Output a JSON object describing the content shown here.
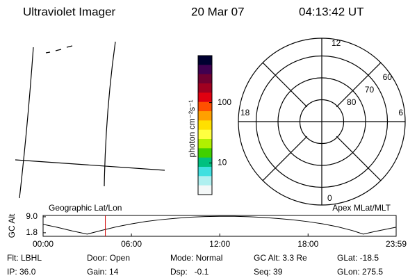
{
  "header": {
    "title": "Ultraviolet Imager",
    "date": "20 Mar 07",
    "time": "04:13:42 UT"
  },
  "colorbar": {
    "label": "photon cm⁻²s⁻¹",
    "lim": [
      3,
      600
    ],
    "log": true,
    "ticks": [
      100,
      10
    ],
    "colors": [
      "#000030",
      "#400050",
      "#700030",
      "#a00020",
      "#e00010",
      "#ff5000",
      "#ffa000",
      "#ffe000",
      "#ffff40",
      "#b0f000",
      "#40d000",
      "#00c080",
      "#40e0e0",
      "#b0f0f0",
      "#f4f8f8"
    ]
  },
  "polar": {
    "mlt_labels": [
      "12",
      "6",
      "0",
      "18"
    ],
    "rings": [
      60,
      70,
      80
    ]
  },
  "altitude": {
    "ylabel": "GC Alt",
    "left_title": "Geographic Lat/Lon",
    "right_title": "Apex MLat/MLT",
    "xlim": [
      0,
      23.983
    ],
    "ylim": [
      0.2,
      9.6
    ],
    "xticks": [
      {
        "value": 0,
        "label": "00:00"
      },
      {
        "value": 6,
        "label": "06:00"
      },
      {
        "value": 12,
        "label": "12:00"
      },
      {
        "value": 18,
        "label": "18:00"
      },
      {
        "value": 23.983,
        "label": "23:59"
      }
    ],
    "yticks": [
      {
        "value": 9.0,
        "label": "9.0"
      },
      {
        "value": 1.8,
        "label": "1.8"
      }
    ],
    "x": [
      0,
      1,
      2,
      3,
      4,
      5,
      6,
      7,
      8,
      9,
      10,
      11,
      12,
      13,
      14,
      15,
      16,
      17,
      18,
      19,
      20,
      21,
      21.75,
      22.5,
      23.983
    ],
    "values": [
      5.6,
      4.2,
      2.6,
      1.2,
      2.9,
      4.5,
      5.8,
      6.9,
      7.7,
      8.3,
      8.8,
      9.1,
      9.2,
      9.2,
      9.0,
      8.7,
      8.2,
      7.6,
      6.8,
      5.8,
      4.5,
      2.8,
      1.2,
      2.3,
      4.3
    ],
    "current_time": 4.228,
    "color": "#000000",
    "marker_color": "#d00000"
  },
  "footer": {
    "rows": [
      [
        "Flt: LBHL",
        "Door: Open",
        "Mode: Normal",
        "GC Alt: 3.3 Re",
        "GLat: -18.5"
      ],
      [
        "IP: 36.0",
        "Gain: 14",
        "Dsp:   -0.1",
        "Seq: 39",
        "GLon: 275.5"
      ]
    ]
  }
}
